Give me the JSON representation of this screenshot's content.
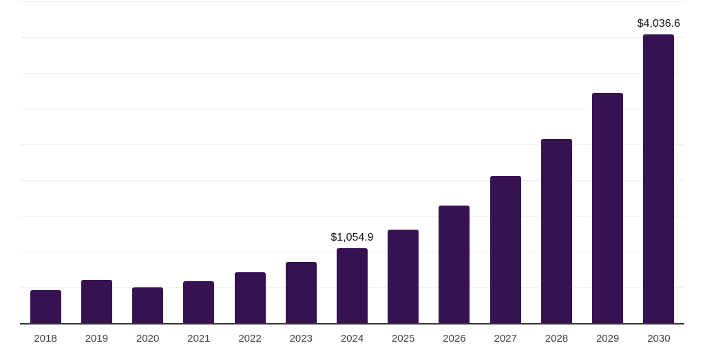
{
  "chart_data": {
    "type": "bar",
    "title": "",
    "xlabel": "",
    "ylabel": "",
    "categories": [
      "2018",
      "2019",
      "2020",
      "2021",
      "2022",
      "2023",
      "2024",
      "2025",
      "2026",
      "2027",
      "2028",
      "2029",
      "2030"
    ],
    "values": [
      475,
      615,
      505,
      595,
      715,
      860,
      1054.9,
      1319.4,
      1650.1,
      2063.9,
      2581.1,
      3228.2,
      4036.6
    ],
    "point_labels": {
      "2024": "$1,054.9",
      "2030": "$4,036.6"
    },
    "ylim": [
      0,
      4500
    ],
    "gridline_step": 500,
    "grid": "horizontal gridlines only, no y-axis tick labels",
    "legend": "none",
    "note": "Only 2024 and 2030 values are labeled on the chart; other values estimated from bar heights against gridlines",
    "colors": {
      "bar": "#371253",
      "gridline": "#f0f0f0",
      "axis_line": "#333333",
      "x_tick_label": "#404040",
      "value_label": "#111111",
      "background": "#ffffff"
    }
  }
}
